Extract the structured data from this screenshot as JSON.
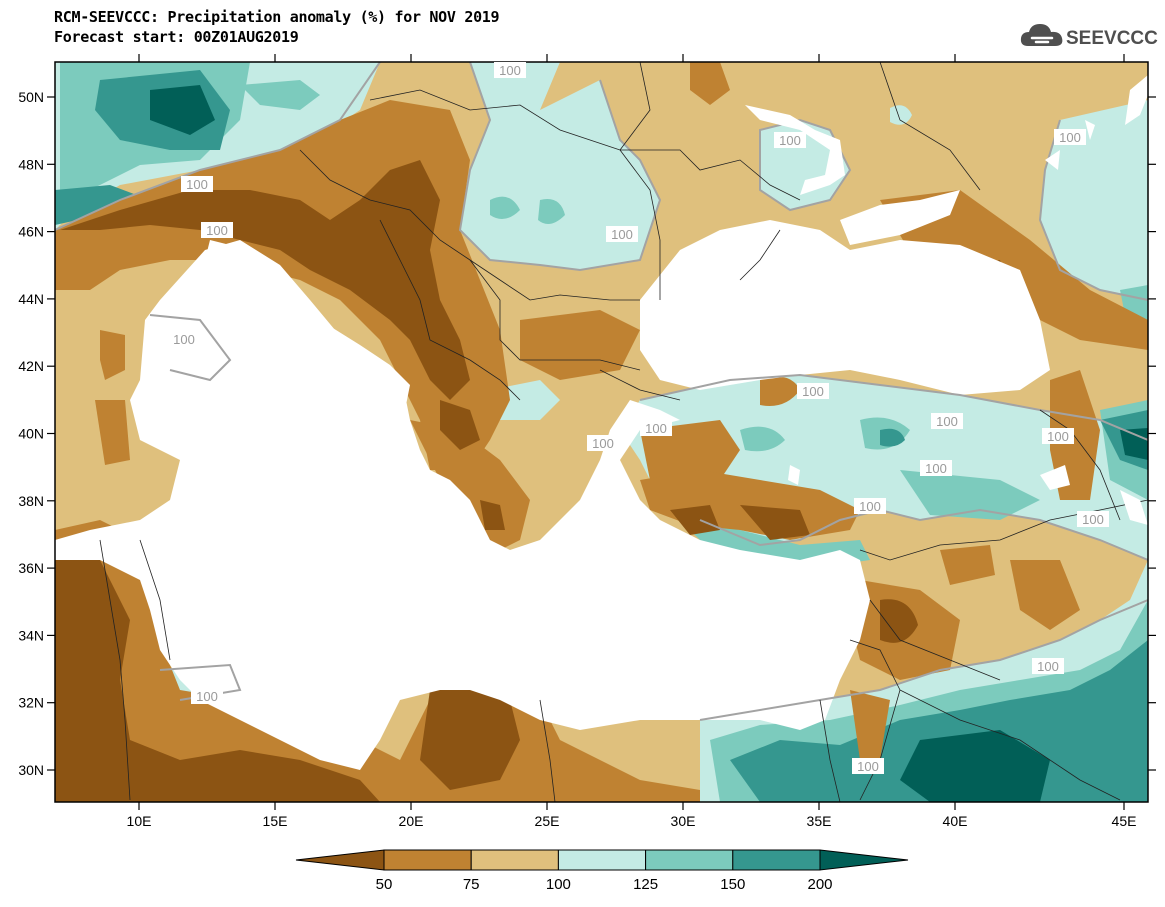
{
  "header": {
    "title": "RCM-SEEVCCC: Precipitation anomaly (%) for NOV 2019",
    "subtitle": "Forecast start: 00Z01AUG2019"
  },
  "logo": {
    "text": "SEEVCCC",
    "icon": "cloud-icon"
  },
  "map": {
    "lon_ticks": [
      "10E",
      "15E",
      "20E",
      "25E",
      "30E",
      "35E",
      "40E",
      "45E"
    ],
    "lat_ticks": [
      "50N",
      "48N",
      "46N",
      "44N",
      "42N",
      "40N",
      "38N",
      "36N",
      "34N",
      "32N",
      "30N"
    ],
    "contour_label": "100",
    "land_colors": {
      "below_50": "#8c5413",
      "50_75": "#bf8232",
      "75_100": "#dfc07d",
      "100_125": "#c4ebe4",
      "125_150": "#7ccbbd",
      "150_200": "#35978f",
      "above_200": "#015f57"
    }
  },
  "colorbar": {
    "labels": [
      "50",
      "75",
      "100",
      "125",
      "150",
      "200"
    ],
    "colors": [
      "#8c5413",
      "#bf8232",
      "#dfc07d",
      "#c4ebe4",
      "#7ccbbd",
      "#35978f",
      "#015f57"
    ]
  }
}
